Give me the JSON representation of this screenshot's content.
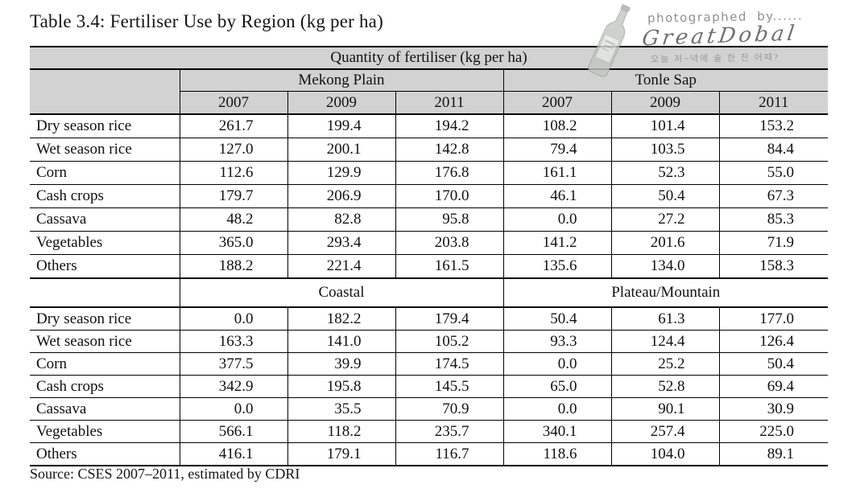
{
  "page": {
    "title": "Table 3.4: Fertiliser Use by Region (kg per ha)",
    "source": "Source: CSES 2007–2011, estimated by CDRI"
  },
  "watermark": {
    "photographed_by": "photographed by......",
    "name": "GreatDobal",
    "korean_note": "오늘 저~녁에 술 한 잔 어때?",
    "bottle_icon": "soju-bottle-icon",
    "color": "#8f8f8f"
  },
  "table": {
    "caption": "Quantity of fertiliser (kg per ha)",
    "header_fill": "#d2d2d2",
    "blocks": [
      {
        "regions": [
          "Mekong Plain",
          "Tonle Sap"
        ],
        "years": [
          "2007",
          "2009",
          "2011",
          "2007",
          "2009",
          "2011"
        ],
        "rows": [
          {
            "label": "Dry season rice",
            "values": [
              "261.7",
              "199.4",
              "194.2",
              "108.2",
              "101.4",
              "153.2"
            ]
          },
          {
            "label": "Wet season rice",
            "values": [
              "127.0",
              "200.1",
              "142.8",
              "79.4",
              "103.5",
              "84.4"
            ]
          },
          {
            "label": "Corn",
            "values": [
              "112.6",
              "129.9",
              "176.8",
              "161.1",
              "52.3",
              "55.0"
            ]
          },
          {
            "label": "Cash crops",
            "values": [
              "179.7",
              "206.9",
              "170.0",
              "46.1",
              "50.4",
              "67.3"
            ]
          },
          {
            "label": "Cassava",
            "values": [
              "48.2",
              "82.8",
              "95.8",
              "0.0",
              "27.2",
              "85.3"
            ]
          },
          {
            "label": "Vegetables",
            "values": [
              "365.0",
              "293.4",
              "203.8",
              "141.2",
              "201.6",
              "71.9"
            ]
          },
          {
            "label": "Others",
            "values": [
              "188.2",
              "221.4",
              "161.5",
              "135.6",
              "134.0",
              "158.3"
            ]
          }
        ]
      },
      {
        "regions": [
          "Coastal",
          "Plateau/Mountain"
        ],
        "rows": [
          {
            "label": "Dry season rice",
            "values": [
              "0.0",
              "182.2",
              "179.4",
              "50.4",
              "61.3",
              "177.0"
            ]
          },
          {
            "label": "Wet season rice",
            "values": [
              "163.3",
              "141.0",
              "105.2",
              "93.3",
              "124.4",
              "126.4"
            ]
          },
          {
            "label": "Corn",
            "values": [
              "377.5",
              "39.9",
              "174.5",
              "0.0",
              "25.2",
              "50.4"
            ]
          },
          {
            "label": "Cash crops",
            "values": [
              "342.9",
              "195.8",
              "145.5",
              "65.0",
              "52.8",
              "69.4"
            ]
          },
          {
            "label": "Cassava",
            "values": [
              "0.0",
              "35.5",
              "70.9",
              "0.0",
              "90.1",
              "30.9"
            ]
          },
          {
            "label": "Vegetables",
            "values": [
              "566.1",
              "118.2",
              "235.7",
              "340.1",
              "257.4",
              "225.0"
            ]
          },
          {
            "label": "Others",
            "values": [
              "416.1",
              "179.1",
              "116.7",
              "118.6",
              "104.0",
              "89.1"
            ]
          }
        ]
      }
    ]
  },
  "chart_data": {
    "type": "table",
    "title": "Table 3.4: Fertiliser Use by Region (kg per ha)",
    "caption": "Quantity of fertiliser (kg per ha)",
    "row_categories": [
      "Dry season rice",
      "Wet season rice",
      "Corn",
      "Cash crops",
      "Cassava",
      "Vegetables",
      "Others"
    ],
    "series": [
      {
        "name": "Mekong Plain 2007",
        "values": [
          261.7,
          127.0,
          112.6,
          179.7,
          48.2,
          365.0,
          188.2
        ]
      },
      {
        "name": "Mekong Plain 2009",
        "values": [
          199.4,
          200.1,
          129.9,
          206.9,
          82.8,
          293.4,
          221.4
        ]
      },
      {
        "name": "Mekong Plain 2011",
        "values": [
          194.2,
          142.8,
          176.8,
          170.0,
          95.8,
          203.8,
          161.5
        ]
      },
      {
        "name": "Tonle Sap 2007",
        "values": [
          108.2,
          79.4,
          161.1,
          46.1,
          0.0,
          141.2,
          135.6
        ]
      },
      {
        "name": "Tonle Sap 2009",
        "values": [
          101.4,
          103.5,
          52.3,
          50.4,
          27.2,
          201.6,
          134.0
        ]
      },
      {
        "name": "Tonle Sap 2011",
        "values": [
          153.2,
          84.4,
          55.0,
          67.3,
          85.3,
          71.9,
          158.3
        ]
      },
      {
        "name": "Coastal 2007",
        "values": [
          0.0,
          163.3,
          377.5,
          342.9,
          0.0,
          566.1,
          416.1
        ]
      },
      {
        "name": "Coastal 2009",
        "values": [
          182.2,
          141.0,
          39.9,
          195.8,
          35.5,
          118.2,
          179.1
        ]
      },
      {
        "name": "Coastal 2011",
        "values": [
          179.4,
          105.2,
          174.5,
          145.5,
          70.9,
          235.7,
          116.7
        ]
      },
      {
        "name": "Plateau/Mountain 2007",
        "values": [
          50.4,
          93.3,
          0.0,
          65.0,
          0.0,
          340.1,
          118.6
        ]
      },
      {
        "name": "Plateau/Mountain 2009",
        "values": [
          61.3,
          124.4,
          25.2,
          52.8,
          90.1,
          257.4,
          104.0
        ]
      },
      {
        "name": "Plateau/Mountain 2011",
        "values": [
          177.0,
          126.4,
          50.4,
          69.4,
          30.9,
          225.0,
          89.1
        ]
      }
    ],
    "source": "Source: CSES 2007–2011, estimated by CDRI"
  }
}
